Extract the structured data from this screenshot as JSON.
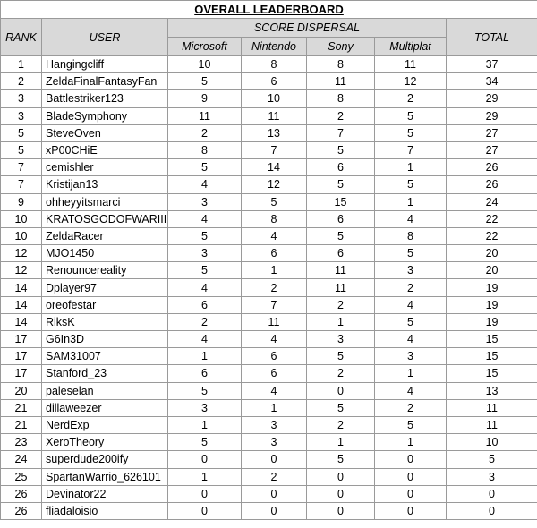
{
  "title": "OVERALL LEADERBOARD",
  "headers": {
    "rank": "RANK",
    "user": "USER",
    "score_dispersal": "SCORE DISPERSAL",
    "microsoft": "Microsoft",
    "nintendo": "Nintendo",
    "sony": "Sony",
    "multiplat": "Multiplat",
    "total": "TOTAL"
  },
  "rows": [
    {
      "rank": "1",
      "user": "Hangingcliff",
      "microsoft": "10",
      "nintendo": "8",
      "sony": "8",
      "multiplat": "11",
      "total": "37"
    },
    {
      "rank": "2",
      "user": "ZeldaFinalFantasyFan",
      "microsoft": "5",
      "nintendo": "6",
      "sony": "11",
      "multiplat": "12",
      "total": "34"
    },
    {
      "rank": "3",
      "user": "Battlestriker123",
      "microsoft": "9",
      "nintendo": "10",
      "sony": "8",
      "multiplat": "2",
      "total": "29"
    },
    {
      "rank": "3",
      "user": "BladeSymphony",
      "microsoft": "11",
      "nintendo": "11",
      "sony": "2",
      "multiplat": "5",
      "total": "29"
    },
    {
      "rank": "5",
      "user": "SteveOven",
      "microsoft": "2",
      "nintendo": "13",
      "sony": "7",
      "multiplat": "5",
      "total": "27"
    },
    {
      "rank": "5",
      "user": "xP00CHiE",
      "microsoft": "8",
      "nintendo": "7",
      "sony": "5",
      "multiplat": "7",
      "total": "27"
    },
    {
      "rank": "7",
      "user": "cemishler",
      "microsoft": "5",
      "nintendo": "14",
      "sony": "6",
      "multiplat": "1",
      "total": "26"
    },
    {
      "rank": "7",
      "user": "Kristijan13",
      "microsoft": "4",
      "nintendo": "12",
      "sony": "5",
      "multiplat": "5",
      "total": "26"
    },
    {
      "rank": "9",
      "user": "ohheyyitsmarci",
      "microsoft": "3",
      "nintendo": "5",
      "sony": "15",
      "multiplat": "1",
      "total": "24"
    },
    {
      "rank": "10",
      "user": "KRATOSGODOFWARIII",
      "microsoft": "4",
      "nintendo": "8",
      "sony": "6",
      "multiplat": "4",
      "total": "22"
    },
    {
      "rank": "10",
      "user": "ZeldaRacer",
      "microsoft": "5",
      "nintendo": "4",
      "sony": "5",
      "multiplat": "8",
      "total": "22"
    },
    {
      "rank": "12",
      "user": "MJO1450",
      "microsoft": "3",
      "nintendo": "6",
      "sony": "6",
      "multiplat": "5",
      "total": "20"
    },
    {
      "rank": "12",
      "user": "Renouncereality",
      "microsoft": "5",
      "nintendo": "1",
      "sony": "11",
      "multiplat": "3",
      "total": "20"
    },
    {
      "rank": "14",
      "user": "Dplayer97",
      "microsoft": "4",
      "nintendo": "2",
      "sony": "11",
      "multiplat": "2",
      "total": "19"
    },
    {
      "rank": "14",
      "user": "oreofestar",
      "microsoft": "6",
      "nintendo": "7",
      "sony": "2",
      "multiplat": "4",
      "total": "19"
    },
    {
      "rank": "14",
      "user": "RiksK",
      "microsoft": "2",
      "nintendo": "11",
      "sony": "1",
      "multiplat": "5",
      "total": "19"
    },
    {
      "rank": "17",
      "user": "G6In3D",
      "microsoft": "4",
      "nintendo": "4",
      "sony": "3",
      "multiplat": "4",
      "total": "15"
    },
    {
      "rank": "17",
      "user": "SAM31007",
      "microsoft": "1",
      "nintendo": "6",
      "sony": "5",
      "multiplat": "3",
      "total": "15"
    },
    {
      "rank": "17",
      "user": "Stanford_23",
      "microsoft": "6",
      "nintendo": "6",
      "sony": "2",
      "multiplat": "1",
      "total": "15"
    },
    {
      "rank": "20",
      "user": "paleselan",
      "microsoft": "5",
      "nintendo": "4",
      "sony": "0",
      "multiplat": "4",
      "total": "13"
    },
    {
      "rank": "21",
      "user": "dillaweezer",
      "microsoft": "3",
      "nintendo": "1",
      "sony": "5",
      "multiplat": "2",
      "total": "11"
    },
    {
      "rank": "21",
      "user": "NerdExp",
      "microsoft": "1",
      "nintendo": "3",
      "sony": "2",
      "multiplat": "5",
      "total": "11"
    },
    {
      "rank": "23",
      "user": "XeroTheory",
      "microsoft": "5",
      "nintendo": "3",
      "sony": "1",
      "multiplat": "1",
      "total": "10"
    },
    {
      "rank": "24",
      "user": "superdude200ify",
      "microsoft": "0",
      "nintendo": "0",
      "sony": "5",
      "multiplat": "0",
      "total": "5"
    },
    {
      "rank": "25",
      "user": "SpartanWarrio_626101",
      "microsoft": "1",
      "nintendo": "2",
      "sony": "0",
      "multiplat": "0",
      "total": "3"
    },
    {
      "rank": "26",
      "user": "Devinator22",
      "microsoft": "0",
      "nintendo": "0",
      "sony": "0",
      "multiplat": "0",
      "total": "0"
    },
    {
      "rank": "26",
      "user": "fliadaloisio",
      "microsoft": "0",
      "nintendo": "0",
      "sony": "0",
      "multiplat": "0",
      "total": "0"
    }
  ]
}
